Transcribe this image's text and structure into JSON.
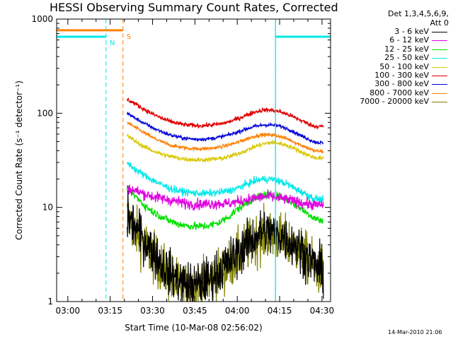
{
  "title": "HESSI Observing Summary Count Rates, Corrected",
  "timestamp": "14-Mar-2010 21:06",
  "legend": {
    "header_line1": "Det 1,3,4,5,6,9,",
    "header_line2": "Att 0",
    "entries": [
      {
        "label": "3 - 6 keV",
        "color": "#000000"
      },
      {
        "label": "6 - 12 keV",
        "color": "#e000e0"
      },
      {
        "label": "12 - 25 keV",
        "color": "#00e000"
      },
      {
        "label": "25 - 50 keV",
        "color": "#00e8e8"
      },
      {
        "label": "50 - 100 keV",
        "color": "#d8c800"
      },
      {
        "label": "100 - 300 keV",
        "color": "#e00000"
      },
      {
        "label": "300 - 800 keV",
        "color": "#0000d8"
      },
      {
        "label": "800 - 7000 keV",
        "color": "#ff8000"
      },
      {
        "label": "7000 - 20000 keV",
        "color": "#808000"
      }
    ]
  },
  "chart_data": {
    "type": "line",
    "title": "HESSI Observing Summary Count Rates, Corrected",
    "xlabel": "Start Time (10-Mar-08 02:56:02)",
    "ylabel": "Corrected Count Rate (s⁻¹ detector⁻¹)",
    "x_unit": "minutes after 02:56:02 UT",
    "xlim": [
      0,
      97
    ],
    "ylim": [
      1,
      1000
    ],
    "y_scale": "log",
    "x_ticks": [
      {
        "label": "03:00",
        "value": 3.97
      },
      {
        "label": "03:15",
        "value": 18.97
      },
      {
        "label": "03:30",
        "value": 33.97
      },
      {
        "label": "03:45",
        "value": 48.97
      },
      {
        "label": "04:00",
        "value": 63.97
      },
      {
        "label": "04:15",
        "value": 78.97
      },
      {
        "label": "04:30",
        "value": 93.97
      }
    ],
    "y_ticks": [
      {
        "label": "1",
        "value": 1
      },
      {
        "label": "10",
        "value": 10
      },
      {
        "label": "100",
        "value": 100
      },
      {
        "label": "1000",
        "value": 1000
      }
    ],
    "x": [
      25,
      28,
      31,
      34,
      37,
      40,
      43,
      46,
      49,
      52,
      55,
      58,
      61,
      64,
      67,
      70,
      73,
      76,
      79,
      82,
      85,
      88,
      91,
      94.5
    ],
    "series": [
      {
        "name": "3 - 6 keV",
        "color": "#000000",
        "noise": 0.25,
        "values": [
          8,
          6,
          4.5,
          3.5,
          2.5,
          2,
          1.7,
          1.5,
          1.5,
          1.6,
          1.8,
          2.2,
          2.6,
          3.2,
          4,
          4.8,
          5.5,
          5.5,
          5,
          4.5,
          4,
          3.2,
          2.5,
          2
        ]
      },
      {
        "name": "6 - 12 keV",
        "color": "#e000e0",
        "noise": 0.06,
        "values": [
          16,
          15,
          14,
          13,
          12.5,
          12,
          11.5,
          11,
          10.8,
          10.8,
          11,
          11,
          11,
          11.5,
          12,
          12.5,
          13,
          13,
          12.5,
          12,
          11.5,
          11,
          10.7,
          10.5
        ]
      },
      {
        "name": "12 - 25 keV",
        "color": "#00e000",
        "noise": 0.045,
        "values": [
          16,
          13,
          10.5,
          9,
          8,
          7.2,
          6.7,
          6.4,
          6.3,
          6.3,
          6.5,
          7,
          8,
          9.5,
          11,
          12.5,
          13.5,
          13.5,
          13,
          12,
          10.5,
          9,
          7.8,
          7
        ]
      },
      {
        "name": "25 - 50 keV",
        "color": "#00e8e8",
        "noise": 0.04,
        "values": [
          30,
          25,
          22,
          19.5,
          17.5,
          16,
          15,
          14.5,
          14.2,
          14,
          14.2,
          14.5,
          15,
          16,
          17.5,
          19,
          20,
          20,
          19,
          17.5,
          15.5,
          14,
          12.5,
          12
        ]
      },
      {
        "name": "50 - 100 keV",
        "color": "#d8c800",
        "noise": 0.025,
        "values": [
          58,
          50,
          44,
          40,
          37,
          35,
          33.5,
          32.5,
          32,
          32,
          32.5,
          33,
          34.5,
          37,
          40,
          44,
          47,
          49,
          48,
          45,
          41,
          37,
          34,
          33
        ]
      },
      {
        "name": "100 - 300 keV",
        "color": "#e00000",
        "noise": 0.025,
        "values": [
          140,
          125,
          110,
          98,
          89,
          82,
          78,
          75,
          74,
          74,
          75,
          77,
          81,
          87,
          95,
          103,
          108,
          108,
          104,
          97,
          88,
          80,
          73,
          72
        ]
      },
      {
        "name": "300 - 800 keV",
        "color": "#0000d8",
        "noise": 0.02,
        "values": [
          100,
          88,
          78,
          70,
          64,
          59,
          56,
          54,
          53,
          53,
          54,
          56,
          59,
          63,
          68,
          72,
          75,
          75,
          73,
          68,
          61,
          55,
          50,
          48
        ]
      },
      {
        "name": "800 - 7000 keV",
        "color": "#ff8000",
        "noise": 0.02,
        "values": [
          80,
          70,
          62,
          55,
          50,
          46,
          44,
          42.5,
          42,
          42,
          42.5,
          44,
          46,
          49,
          53,
          57,
          59,
          59,
          57,
          53,
          48,
          44,
          40,
          39
        ]
      },
      {
        "name": "7000 - 20000 keV",
        "color": "#808000",
        "noise": 0.28,
        "values": [
          8,
          5.5,
          4,
          3,
          2.3,
          1.8,
          1.5,
          1.4,
          1.4,
          1.5,
          1.7,
          2,
          2.4,
          3,
          3.7,
          4.4,
          5,
          5,
          4.6,
          4.2,
          3.7,
          3,
          2.4,
          2
        ]
      }
    ],
    "state_bars": [
      {
        "label": "N",
        "color": "#00e8e8",
        "level": 650,
        "segments": [
          [
            0,
            17.5
          ],
          [
            77.5,
            97
          ]
        ],
        "boundaries": [
          17.5,
          77.5
        ],
        "label_at": 17.5
      },
      {
        "label": "S",
        "color": "#ff8000",
        "level": 760,
        "segments": [
          [
            0,
            23.5
          ]
        ],
        "boundaries": [
          23.5
        ],
        "label_at": 23.5
      }
    ]
  }
}
